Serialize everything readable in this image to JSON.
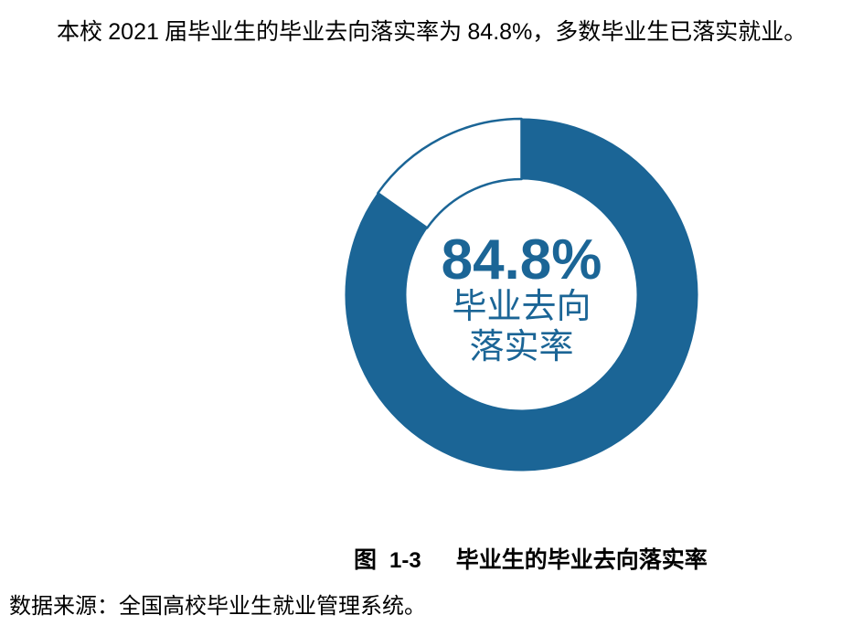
{
  "accent_color": "#1b6596",
  "intro": {
    "part1": "本校 ",
    "part2": "2021",
    "part3": " 届毕业生的毕业去向落实率为 ",
    "part4": "84.8%",
    "part5": "，多数毕业生已落实就业。"
  },
  "chart_data": {
    "type": "pie",
    "subtype": "donut",
    "title": "毕业生的毕业去向落实率",
    "value_pct": 84.8,
    "remainder_pct": 15.2,
    "unit": "%",
    "start_angle_deg": 0,
    "direction": "clockwise",
    "inner_radius_ratio": 0.65,
    "colors": {
      "filled": "#1b6596",
      "unfilled": "#ffffff",
      "border": "#1b6596"
    },
    "center_label": {
      "value": "84.8%",
      "line2": "毕业去向",
      "line3": "落实率"
    }
  },
  "caption": {
    "figure_label_zh": "图",
    "figure_number": "1-3",
    "title": "毕业生的毕业去向落实率"
  },
  "source": {
    "text": "数据来源：全国高校毕业生就业管理系统。"
  }
}
